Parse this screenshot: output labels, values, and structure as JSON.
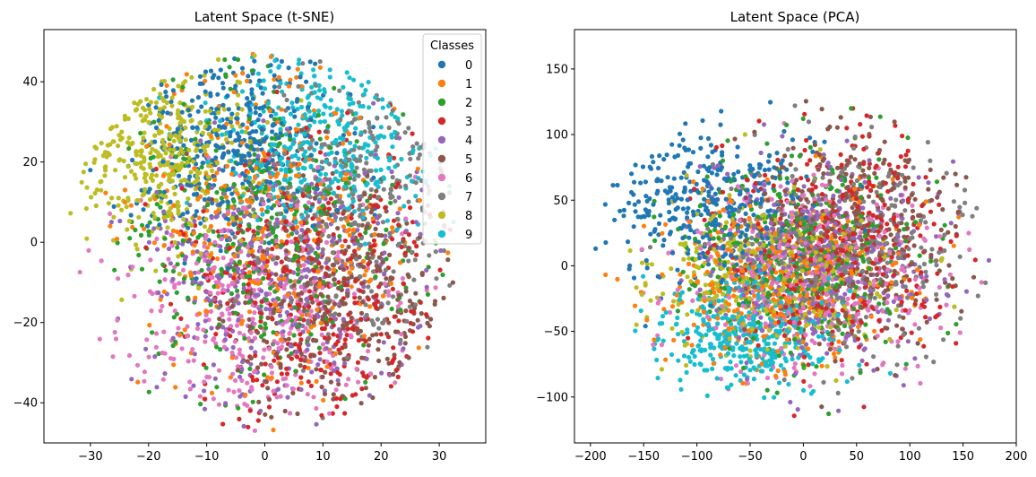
{
  "colors": [
    "#1f77b4",
    "#ff7f0e",
    "#2ca02c",
    "#d62728",
    "#9467bd",
    "#8c564b",
    "#e377c2",
    "#7f7f7f",
    "#bcbd22",
    "#17becf"
  ],
  "chart_data": [
    {
      "type": "scatter",
      "title": "Latent Space (t-SNE)",
      "xlabel": "",
      "ylabel": "",
      "xlim": [
        -38,
        38
      ],
      "ylim": [
        -50,
        53
      ],
      "xticks": [
        -30,
        -20,
        -10,
        0,
        10,
        20,
        30
      ],
      "yticks": [
        -40,
        -20,
        0,
        20,
        40
      ],
      "grid": false,
      "legend": {
        "title": "Classes",
        "position": "top-right",
        "entries": [
          "0",
          "1",
          "2",
          "3",
          "4",
          "5",
          "6",
          "7",
          "8",
          "9"
        ]
      },
      "series": [
        {
          "name": "0",
          "centroid": [
            -6,
            25
          ],
          "spread": [
            8,
            12
          ]
        },
        {
          "name": "1",
          "centroid": [
            2,
            5
          ],
          "spread": [
            12,
            20
          ]
        },
        {
          "name": "2",
          "centroid": [
            0,
            2
          ],
          "spread": [
            13,
            20
          ]
        },
        {
          "name": "3",
          "centroid": [
            8,
            -12
          ],
          "spread": [
            12,
            18
          ]
        },
        {
          "name": "4",
          "centroid": [
            2,
            -8
          ],
          "spread": [
            12,
            18
          ]
        },
        {
          "name": "5",
          "centroid": [
            12,
            -15
          ],
          "spread": [
            10,
            16
          ]
        },
        {
          "name": "6",
          "centroid": [
            -2,
            -18
          ],
          "spread": [
            13,
            16
          ]
        },
        {
          "name": "7",
          "centroid": [
            14,
            10
          ],
          "spread": [
            9,
            18
          ]
        },
        {
          "name": "8",
          "centroid": [
            -18,
            22
          ],
          "spread": [
            8,
            11
          ]
        },
        {
          "name": "9",
          "centroid": [
            10,
            25
          ],
          "spread": [
            10,
            12
          ]
        }
      ]
    },
    {
      "type": "scatter",
      "title": "Latent Space (PCA)",
      "xlabel": "",
      "ylabel": "",
      "xlim": [
        -215,
        200
      ],
      "ylim": [
        -135,
        180
      ],
      "xticks": [
        -200,
        -150,
        -100,
        -50,
        0,
        50,
        100,
        150,
        200
      ],
      "yticks": [
        -100,
        -50,
        0,
        50,
        100,
        150
      ],
      "grid": false,
      "series": [
        {
          "name": "0",
          "centroid": [
            -90,
            45
          ],
          "spread": [
            50,
            30
          ]
        },
        {
          "name": "1",
          "centroid": [
            -20,
            -10
          ],
          "spread": [
            60,
            35
          ]
        },
        {
          "name": "2",
          "centroid": [
            0,
            10
          ],
          "spread": [
            55,
            38
          ]
        },
        {
          "name": "3",
          "centroid": [
            30,
            20
          ],
          "spread": [
            55,
            45
          ]
        },
        {
          "name": "4",
          "centroid": [
            20,
            5
          ],
          "spread": [
            55,
            38
          ]
        },
        {
          "name": "5",
          "centroid": [
            50,
            25
          ],
          "spread": [
            50,
            40
          ]
        },
        {
          "name": "6",
          "centroid": [
            10,
            -5
          ],
          "spread": [
            60,
            35
          ]
        },
        {
          "name": "7",
          "centroid": [
            40,
            15
          ],
          "spread": [
            55,
            40
          ]
        },
        {
          "name": "8",
          "centroid": [
            -30,
            -10
          ],
          "spread": [
            55,
            30
          ]
        },
        {
          "name": "9",
          "centroid": [
            -50,
            -55
          ],
          "spread": [
            40,
            22
          ]
        }
      ]
    }
  ]
}
